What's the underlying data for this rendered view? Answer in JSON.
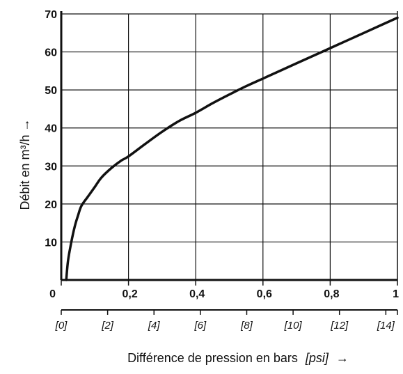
{
  "chart_data": {
    "type": "line",
    "title": "",
    "xlabel": {
      "main": "Différence de pression en bars",
      "unit": "[psi]",
      "arrow": "→"
    },
    "ylabel": "Débit en m³/h →",
    "xlim": [
      0,
      1
    ],
    "ylim": [
      0,
      70
    ],
    "x_ticks": [
      0,
      0.2,
      0.4,
      0.6,
      0.8,
      1
    ],
    "x_tick_labels": [
      "0",
      "0,2",
      "0,4",
      "0,6",
      "0,8",
      "1"
    ],
    "y_ticks": [
      10,
      20,
      30,
      40,
      50,
      60,
      70
    ],
    "y_tick_labels": [
      "10",
      "20",
      "30",
      "40",
      "50",
      "60",
      "70"
    ],
    "psi_axis": {
      "range": [
        0,
        14.5
      ],
      "ticks": [
        0,
        2,
        4,
        6,
        8,
        10,
        12,
        14
      ],
      "tick_labels": [
        "[0]",
        "[2]",
        "[4]",
        "[6]",
        "[8]",
        "[10]",
        "[12]",
        "[14]"
      ]
    },
    "grid": true,
    "series": [
      {
        "x": [
          0.015,
          0.02,
          0.03,
          0.04,
          0.05,
          0.06,
          0.08,
          0.1,
          0.12,
          0.15,
          0.18,
          0.2,
          0.25,
          0.3,
          0.35,
          0.4,
          0.45,
          0.5,
          0.55,
          0.6,
          0.65,
          0.7,
          0.75,
          0.8,
          0.85,
          0.9,
          0.95,
          1.0
        ],
        "y": [
          0,
          5,
          10,
          14,
          17,
          19.5,
          22,
          24.5,
          27,
          29.5,
          31.5,
          32.5,
          35.8,
          39,
          41.8,
          44,
          46.5,
          48.8,
          51,
          53,
          55,
          57,
          59,
          61,
          63,
          65,
          67,
          69
        ],
        "color": "#111111"
      }
    ]
  }
}
